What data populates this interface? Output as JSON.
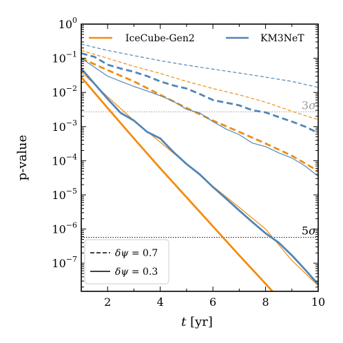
{
  "chart_data": {
    "type": "line",
    "xlabel": "t [yr]",
    "xlabel_parts": {
      "var": "t",
      "unit": "[yr]"
    },
    "ylabel": "p-value",
    "xlim": [
      1,
      10
    ],
    "ylim": [
      1.5e-08,
      1
    ],
    "yscale": "log",
    "x_ticks": [
      2,
      4,
      6,
      8,
      10
    ],
    "x_tick_labels": [
      "2",
      "4",
      "6",
      "8",
      "10"
    ],
    "y_ticks": [
      {
        "value": 1,
        "base": "10",
        "exp": "0"
      },
      {
        "value": 0.1,
        "base": "10",
        "exp": "−1"
      },
      {
        "value": 0.01,
        "base": "10",
        "exp": "−2"
      },
      {
        "value": 0.001,
        "base": "10",
        "exp": "−3"
      },
      {
        "value": 0.0001,
        "base": "10",
        "exp": "−4"
      },
      {
        "value": 1e-05,
        "base": "10",
        "exp": "−5"
      },
      {
        "value": 1e-06,
        "base": "10",
        "exp": "−6"
      },
      {
        "value": 1e-07,
        "base": "10",
        "exp": "−7"
      }
    ],
    "grid": false,
    "legend_top": {
      "placement": "top",
      "entries": [
        {
          "label": "IceCube-Gen2",
          "color": "#F28C0F"
        },
        {
          "label": "KM3NeT",
          "color": "#4F86B7"
        }
      ]
    },
    "legend_bottom": {
      "placement": "bottom-left",
      "entries": [
        {
          "label": "δψ = 0.7",
          "sym": "δψ",
          "val": " = 0.7",
          "style": "dashed"
        },
        {
          "label": "δψ = 0.3",
          "sym": "δψ",
          "val": " = 0.3",
          "style": "solid"
        }
      ]
    },
    "reference_lines": [
      {
        "label": "3σ",
        "num": "3",
        "sym": "σ",
        "y": 0.0027,
        "color": "#999999"
      },
      {
        "label": "5σ",
        "num": "5",
        "sym": "σ",
        "y": 5.7e-07,
        "color": "#000000"
      }
    ],
    "colors": {
      "icecube": "#F28C0F",
      "km3net": "#4F86B7"
    },
    "series": [
      {
        "id": "icecube-dashed-thin",
        "detector": "IceCube-Gen2",
        "style": "dashed",
        "width": "thin",
        "color": "#F28C0F",
        "x": [
          1,
          2,
          3,
          4,
          5,
          6,
          7,
          8,
          9,
          10
        ],
        "y": [
          0.17,
          0.1,
          0.058,
          0.036,
          0.021,
          0.013,
          0.0085,
          0.0052,
          0.0028,
          0.0016
        ]
      },
      {
        "id": "km3net-dashed-thin",
        "detector": "KM3NeT",
        "style": "dashed",
        "width": "thin",
        "color": "#4F86B7",
        "x": [
          1,
          2,
          3,
          4,
          5,
          6,
          7,
          8,
          9,
          10
        ],
        "y": [
          0.26,
          0.17,
          0.12,
          0.085,
          0.063,
          0.048,
          0.037,
          0.028,
          0.021,
          0.014
        ]
      },
      {
        "id": "icecube-dashed-thick",
        "detector": "IceCube-Gen2",
        "style": "dashed",
        "width": "thick",
        "color": "#F28C0F",
        "x": [
          1,
          2,
          3,
          4,
          5,
          6,
          7,
          8,
          9,
          10
        ],
        "y": [
          0.1,
          0.045,
          0.021,
          0.0085,
          0.0035,
          0.0015,
          0.0007,
          0.00032,
          0.00014,
          5e-05
        ]
      },
      {
        "id": "km3net-dashed-thick",
        "detector": "KM3NeT",
        "style": "dashed",
        "width": "thick",
        "color": "#4F86B7",
        "x": [
          1,
          1.5,
          2,
          2.5,
          3,
          3.5,
          4,
          4.5,
          5,
          5.5,
          6,
          6.5,
          7,
          7.5,
          8,
          8.5,
          9,
          9.5,
          10
        ],
        "y": [
          0.14,
          0.11,
          0.065,
          0.05,
          0.04,
          0.03,
          0.021,
          0.016,
          0.013,
          0.009,
          0.006,
          0.005,
          0.0042,
          0.003,
          0.0026,
          0.0019,
          0.0014,
          0.001,
          0.00065
        ]
      },
      {
        "id": "icecube-solid-thick",
        "detector": "IceCube-Gen2",
        "style": "solid",
        "width": "thick",
        "color": "#F28C0F",
        "x": [
          1,
          2,
          3,
          4,
          5,
          6,
          7,
          8,
          8.9
        ],
        "y": [
          0.028,
          0.0035,
          0.00045,
          6e-05,
          8.5e-06,
          1.2e-06,
          1.7e-07,
          2.5e-08,
          4.2e-09
        ]
      },
      {
        "id": "icecube-solid-thin",
        "detector": "IceCube-Gen2",
        "style": "solid",
        "width": "thin",
        "color": "#F28C0F",
        "x": [
          1,
          2,
          3,
          4,
          5,
          6,
          7,
          8,
          9,
          10
        ],
        "y": [
          0.04,
          0.0075,
          0.0015,
          0.00035,
          8e-05,
          1.8e-05,
          4.3e-06,
          1e-06,
          1.2e-07,
          2.2e-08
        ]
      },
      {
        "id": "km3net-solid-thin",
        "detector": "KM3NeT",
        "style": "solid",
        "width": "thin",
        "color": "#4F86B7",
        "x": [
          1,
          1.5,
          2,
          2.5,
          3,
          3.5,
          4,
          4.5,
          5,
          5.5,
          6,
          6.5,
          7,
          7.5,
          8,
          8.5,
          9,
          9.5,
          10
        ],
        "y": [
          0.1,
          0.055,
          0.03,
          0.021,
          0.015,
          0.011,
          0.008,
          0.0055,
          0.0032,
          0.0025,
          0.0014,
          0.00085,
          0.00058,
          0.00033,
          0.00026,
          0.00017,
          0.00012,
          7e-05,
          3.5e-05
        ]
      },
      {
        "id": "km3net-solid-thick",
        "detector": "KM3NeT",
        "style": "solid",
        "width": "thick",
        "color": "#4F86B7",
        "x": [
          1,
          1.5,
          2,
          2.5,
          3,
          3.5,
          4,
          4.5,
          5,
          5.5,
          6,
          6.5,
          7,
          7.5,
          8,
          8.5,
          9,
          9.5,
          10
        ],
        "y": [
          0.05,
          0.018,
          0.0065,
          0.0025,
          0.0015,
          0.0007,
          0.00045,
          0.00018,
          8e-05,
          4e-05,
          1.7e-05,
          7.8e-06,
          3.5e-06,
          1.6e-06,
          7.5e-07,
          4e-07,
          1.7e-07,
          6.5e-08,
          2.4e-08
        ]
      }
    ]
  }
}
